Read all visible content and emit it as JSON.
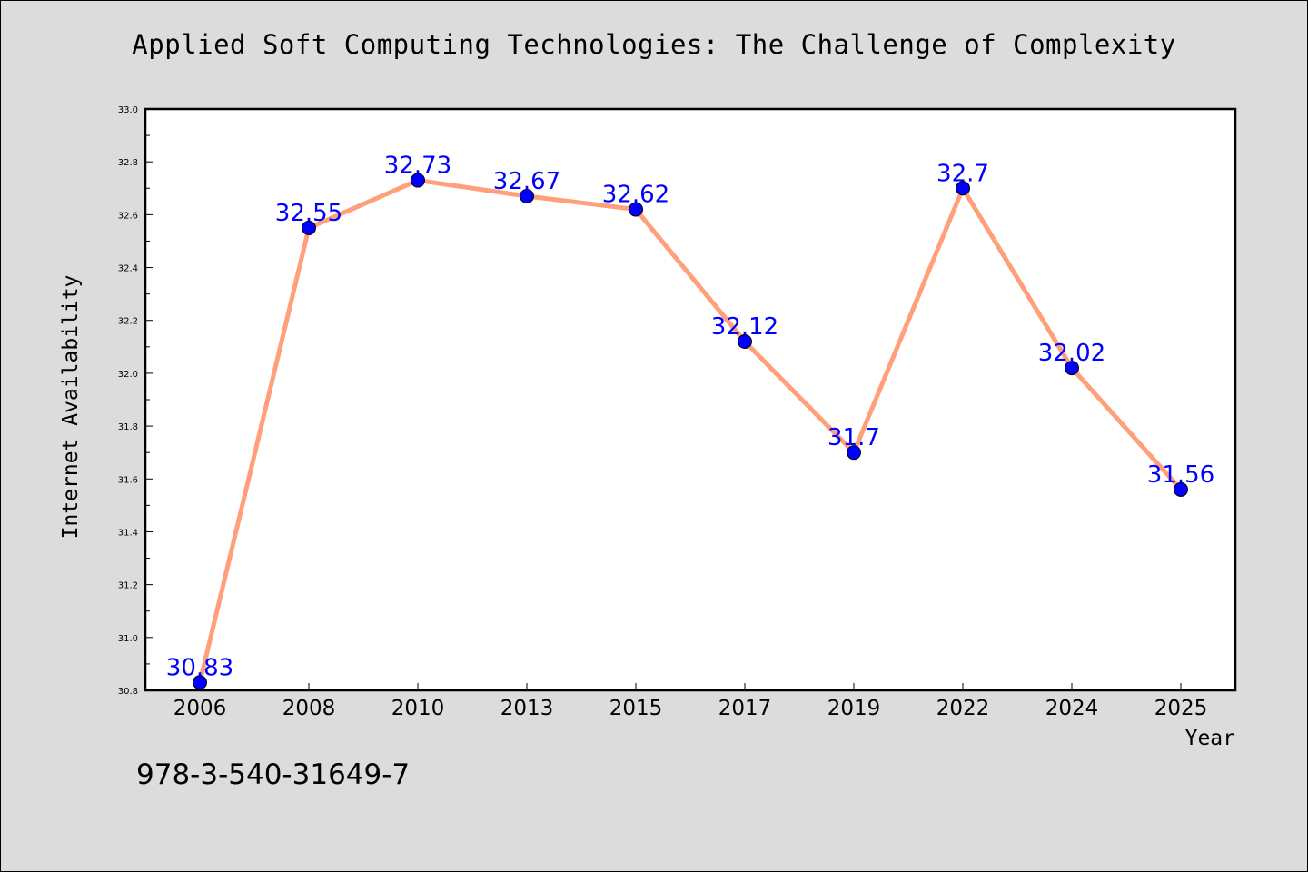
{
  "title": "Applied Soft Computing Technologies: The Challenge of Complexity",
  "footer_text": "978-3-540-31649-7",
  "colors": {
    "background": "#dcdcdc",
    "plot_background": "#ffffff",
    "line": "#ffa07a",
    "marker": "#0000ff",
    "data_label": "#0000ff"
  },
  "chart_data": {
    "type": "line",
    "categories": [
      "2006",
      "2008",
      "2010",
      "2013",
      "2015",
      "2017",
      "2019",
      "2022",
      "2024",
      "2025"
    ],
    "series": [
      {
        "values": [
          30.83,
          32.55,
          32.73,
          32.67,
          32.62,
          32.12,
          31.7,
          32.7,
          32.02,
          31.56
        ],
        "labels": [
          "30.83",
          "32.55",
          "32.73",
          "32.67",
          "32.62",
          "32.12",
          "31.7",
          "32.7",
          "32.02",
          "31.56"
        ]
      }
    ],
    "xlabel": "Year",
    "ylabel": "Internet Availability",
    "ylim": [
      30.8,
      33.0
    ],
    "yticks": [
      "30.8",
      "31.0",
      "31.2",
      "31.4",
      "31.6",
      "31.8",
      "32.0",
      "32.2",
      "32.4",
      "32.6",
      "32.8",
      "33.0"
    ],
    "grid": false,
    "legend": "none"
  }
}
